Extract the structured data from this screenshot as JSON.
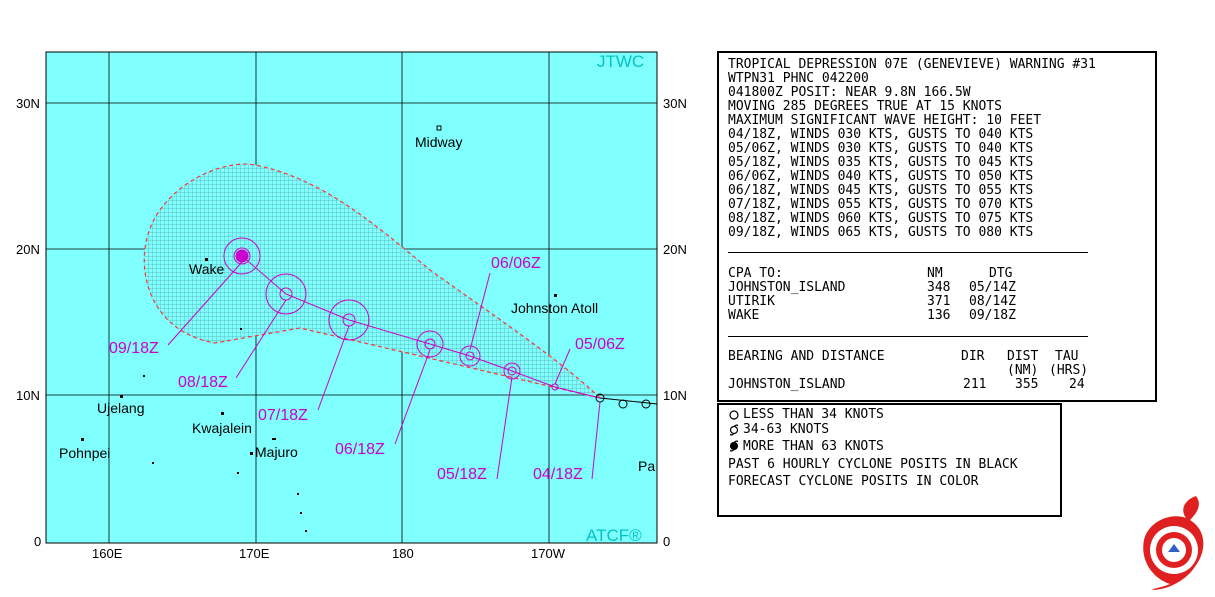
{
  "map": {
    "source_label": "JTWC",
    "system_label": "ATCF®",
    "lat_labels": [
      "30N",
      "20N",
      "10N",
      "0"
    ],
    "lon_labels": [
      "160E",
      "170E",
      "180",
      "170W"
    ],
    "places": [
      {
        "name": "Midway"
      },
      {
        "name": "Wake"
      },
      {
        "name": "Johnston Atoll"
      },
      {
        "name": "Ujelang"
      },
      {
        "name": "Kwajalein"
      },
      {
        "name": "Majuro"
      },
      {
        "name": "Pohnpei"
      },
      {
        "name": "Pa"
      }
    ],
    "forecast_tags": [
      "09/18Z",
      "08/18Z",
      "07/18Z",
      "06/18Z",
      "06/06Z",
      "05/18Z",
      "05/06Z",
      "04/18Z"
    ],
    "colors": {
      "ocean": "#80FFFF",
      "grid": "#000000",
      "track": "#cc00cc",
      "danger_area": "#66cccc",
      "danger_edge": "#ff3333",
      "brand": "#00c4c4"
    }
  },
  "warning": {
    "lines": [
      "TROPICAL DEPRESSION 07E (GENEVIEVE) WARNING #31",
      "WTPN31 PHNC 042200",
      "041800Z POSIT: NEAR 9.8N 166.5W",
      "MOVING 285 DEGREES TRUE AT 15 KNOTS",
      "MAXIMUM SIGNIFICANT WAVE HEIGHT: 10 FEET",
      "04/18Z, WINDS 030 KTS, GUSTS TO 040 KTS",
      "05/06Z, WINDS 030 KTS, GUSTS TO 040 KTS",
      "05/18Z, WINDS 035 KTS, GUSTS TO 045 KTS",
      "06/06Z, WINDS 040 KTS, GUSTS TO 050 KTS",
      "06/18Z, WINDS 045 KTS, GUSTS TO 055 KTS",
      "07/18Z, WINDS 055 KTS, GUSTS TO 070 KTS",
      "08/18Z, WINDS 060 KTS, GUSTS TO 075 KTS",
      "09/18Z, WINDS 065 KTS, GUSTS TO 080 KTS"
    ],
    "cpa": {
      "header": [
        "CPA TO:",
        "NM",
        "DTG"
      ],
      "rows": [
        [
          "JOHNSTON_ISLAND",
          "348",
          "05/14Z"
        ],
        [
          "UTIRIK",
          "371",
          "08/14Z"
        ],
        [
          "WAKE",
          "136",
          "09/18Z"
        ]
      ]
    },
    "bearing": {
      "title": "BEARING AND DISTANCE",
      "cols": [
        "DIR",
        "DIST",
        "TAU"
      ],
      "units": [
        "(NM)",
        "(HRS)"
      ],
      "row": [
        "JOHNSTON_ISLAND",
        "211",
        "355",
        "24"
      ]
    }
  },
  "legend": {
    "items": [
      "LESS THAN 34 KNOTS",
      "34-63 KNOTS",
      "MORE THAN 63 KNOTS"
    ],
    "notes": [
      "PAST 6 HOURLY CYCLONE POSITS IN BLACK",
      "FORECAST CYCLONE POSITS IN COLOR"
    ]
  }
}
